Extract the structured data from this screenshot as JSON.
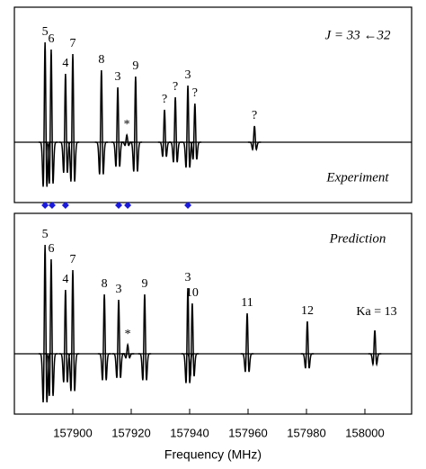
{
  "chart_data": [
    {
      "type": "spectrum",
      "title": "J = 33 ←32",
      "annotation": "Experiment",
      "xlim": [
        157880,
        158016
      ],
      "color": "#000000",
      "peaks": [
        {
          "x": 157890.5,
          "height": 111,
          "label": "5",
          "label_color": "#000000"
        },
        {
          "x": 157892.6,
          "height": 103,
          "label": "6",
          "label_color": "#000000"
        },
        {
          "x": 157897.5,
          "height": 76,
          "label": "4",
          "label_color": "#000000"
        },
        {
          "x": 157900.0,
          "height": 98,
          "label": "7",
          "label_color": "#000000"
        },
        {
          "x": 157909.8,
          "height": 80,
          "label": "8",
          "label_color": "#000000"
        },
        {
          "x": 157915.4,
          "height": 61,
          "label": "3",
          "label_color": "#000000"
        },
        {
          "x": 157918.5,
          "height": 8,
          "label": "*",
          "label_color": "#888888"
        },
        {
          "x": 157921.5,
          "height": 73,
          "label": "9",
          "label_color": "#000000"
        },
        {
          "x": 157931.4,
          "height": 36,
          "label": "?",
          "label_color": "#dd0000"
        },
        {
          "x": 157935.1,
          "height": 50,
          "label": "?",
          "label_color": "#dd0000"
        },
        {
          "x": 157939.4,
          "height": 63,
          "label": "3",
          "label_color": "#000000"
        },
        {
          "x": 157941.8,
          "height": 43,
          "label": "?",
          "label_color": "#dd0000"
        },
        {
          "x": 157962.2,
          "height": 18,
          "label": "?",
          "label_color": "#dd0000"
        }
      ],
      "markers": {
        "color": "#1a1adc",
        "x": [
          157890.5,
          157892.9,
          157897.5,
          157915.7,
          157918.8,
          157939.4
        ]
      }
    },
    {
      "type": "spectrum",
      "annotation": "Prediction",
      "xlim": [
        157880,
        158016
      ],
      "color": "#000000",
      "xticks": [
        157900,
        157920,
        157940,
        157960,
        157980,
        158000
      ],
      "xlabel": "Frequency (MHz)",
      "peaks": [
        {
          "x": 157890.5,
          "height": 121,
          "label": "5",
          "label_color": "#000000"
        },
        {
          "x": 157892.6,
          "height": 105,
          "label": "6",
          "label_color": "#000000"
        },
        {
          "x": 157897.5,
          "height": 71,
          "label": "4",
          "label_color": "#000000"
        },
        {
          "x": 157900.0,
          "height": 93,
          "label": "7",
          "label_color": "#000000"
        },
        {
          "x": 157910.8,
          "height": 66,
          "label": "8",
          "label_color": "#000000"
        },
        {
          "x": 157915.7,
          "height": 60,
          "label": "3",
          "label_color": "#000000"
        },
        {
          "x": 157918.8,
          "height": 10,
          "label": "*",
          "label_color": "#888888"
        },
        {
          "x": 157924.6,
          "height": 66,
          "label": "9",
          "label_color": "#000000"
        },
        {
          "x": 157939.4,
          "height": 73,
          "label": "3",
          "label_color": "#000000"
        },
        {
          "x": 157940.9,
          "height": 56,
          "label": "10",
          "label_color": "#000000"
        },
        {
          "x": 157959.7,
          "height": 45,
          "label": "11",
          "label_color": "#000000"
        },
        {
          "x": 157980.3,
          "height": 36,
          "label": "12",
          "label_color": "#000000"
        },
        {
          "x": 158003.4,
          "height": 26,
          "label": "Ka = 13",
          "label_color": "#000000"
        }
      ]
    }
  ]
}
